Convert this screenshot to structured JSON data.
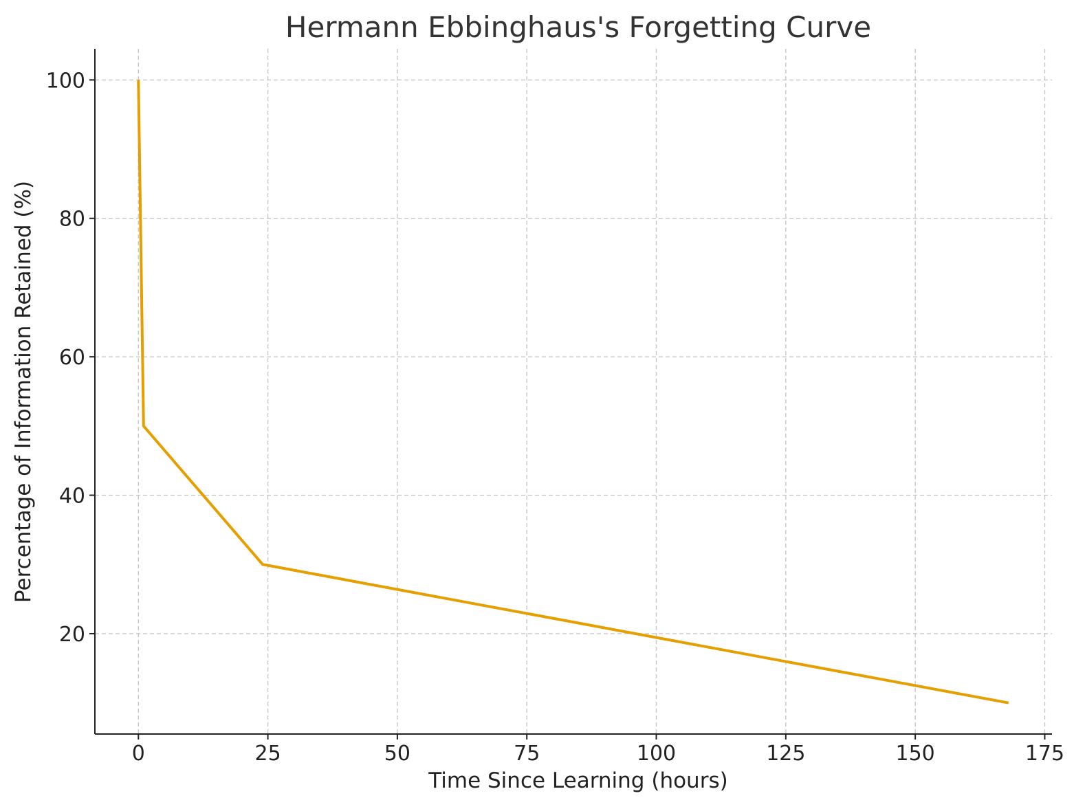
{
  "chart_data": {
    "type": "line",
    "title": "Hermann Ebbinghaus's Forgetting Curve",
    "xlabel": "Time Since Learning (hours)",
    "ylabel": "Percentage of Information Retained (%)",
    "x_ticks": [
      0,
      25,
      50,
      75,
      100,
      125,
      150,
      175
    ],
    "y_ticks": [
      20,
      40,
      60,
      80,
      100
    ],
    "xlim": [
      -8.4,
      176.4
    ],
    "ylim": [
      5.5,
      104.5
    ],
    "grid": true,
    "series": [
      {
        "color": "#E69F00",
        "x": [
          0,
          1,
          24,
          168
        ],
        "y": [
          100,
          50,
          30,
          10
        ]
      }
    ]
  }
}
